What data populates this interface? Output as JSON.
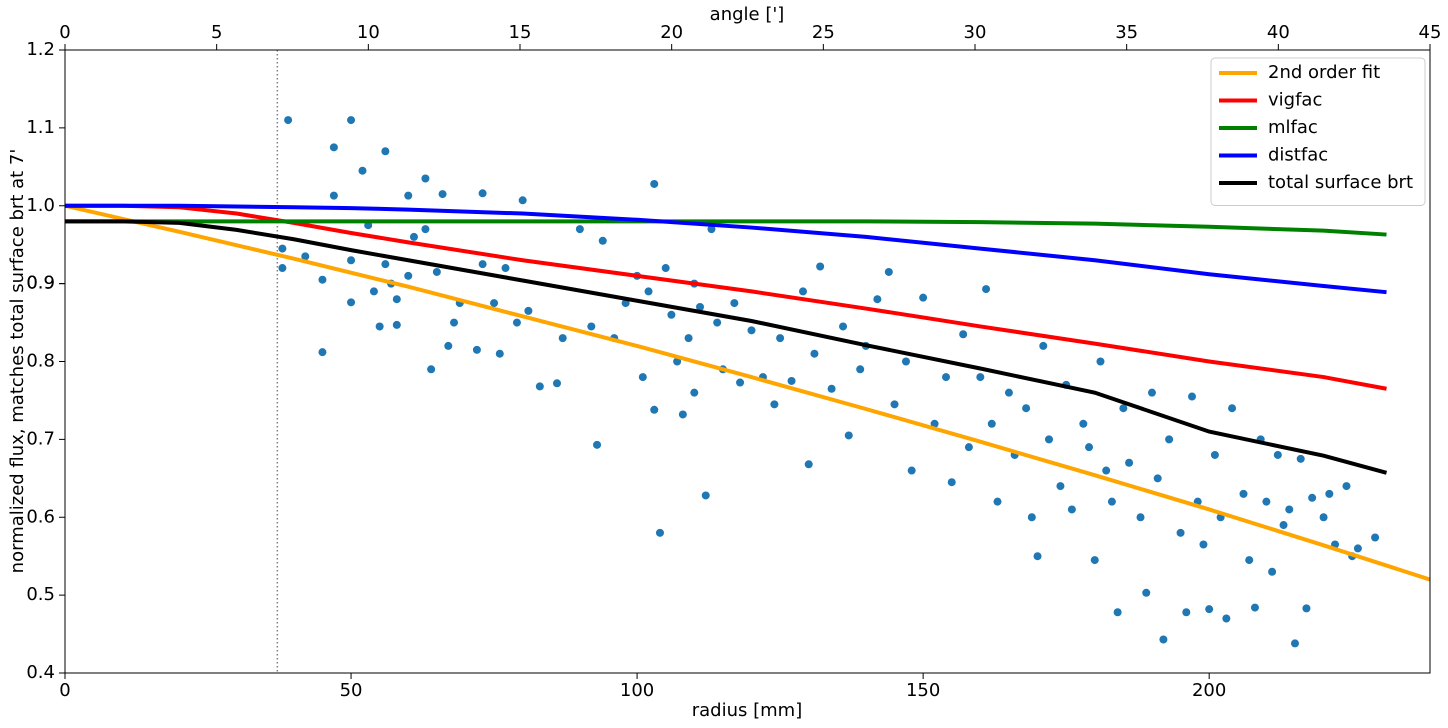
{
  "chart_data": {
    "type": "scatter",
    "xlabel": "radius [mm]",
    "ylabel": "normalized flux, matches total surface brt at 7'",
    "x2label": "angle [']",
    "xlim": [
      0,
      238.6
    ],
    "xticks": [
      0,
      50,
      100,
      150,
      200
    ],
    "x2lim": [
      0,
      45
    ],
    "x2ticks": [
      0,
      5,
      10,
      15,
      20,
      25,
      30,
      35,
      40,
      45
    ],
    "ylim": [
      0.4,
      1.2
    ],
    "yticks": [
      0.4,
      0.5,
      0.6,
      0.7,
      0.8,
      0.9,
      {
        "value": 1,
        "label": "1.0"
      },
      0.9,
      1.1,
      1.2
    ],
    "reference_line": {
      "axis": "x2",
      "value": 7,
      "color": "#808080"
    },
    "legend": "upper right",
    "scatter": {
      "color": "#1f77b4",
      "x": [
        39,
        47,
        50,
        47,
        52,
        56,
        60,
        63,
        66,
        73,
        80,
        103,
        38,
        38,
        42,
        45,
        45,
        50,
        50,
        53,
        54,
        55,
        56,
        57,
        58,
        58,
        60,
        61,
        63,
        64,
        65,
        67,
        68,
        69,
        72,
        73,
        75,
        76,
        77,
        79,
        81,
        83,
        86,
        87,
        90,
        92,
        93,
        94,
        96,
        98,
        100,
        101,
        102,
        103,
        104,
        105,
        106,
        107,
        108,
        109,
        110,
        110,
        111,
        112,
        113,
        114,
        115,
        117,
        118,
        120,
        122,
        124,
        125,
        127,
        129,
        130,
        131,
        132,
        134,
        136,
        137,
        139,
        140,
        142,
        144,
        145,
        147,
        148,
        150,
        152,
        154,
        155,
        157,
        158,
        160,
        161,
        162,
        163,
        165,
        166,
        168,
        169,
        170,
        171,
        172,
        174,
        175,
        176,
        178,
        179,
        180,
        181,
        182,
        183,
        184,
        185,
        186,
        188,
        189,
        190,
        191,
        192,
        193,
        195,
        196,
        197,
        198,
        199,
        200,
        201,
        202,
        203,
        204,
        206,
        207,
        208,
        209,
        210,
        211,
        212,
        213,
        214,
        215,
        216,
        217,
        218,
        220,
        221,
        222,
        224,
        225,
        226,
        229
      ],
      "values": [
        1.11,
        1.075,
        1.11,
        1.013,
        1.045,
        1.07,
        1.013,
        1.035,
        1.015,
        1.016,
        1.007,
        1.028,
        0.945,
        0.92,
        0.935,
        0.905,
        0.812,
        0.93,
        0.876,
        0.975,
        0.89,
        0.845,
        0.925,
        0.9,
        0.88,
        0.847,
        0.91,
        0.96,
        0.97,
        0.79,
        0.915,
        0.82,
        0.85,
        0.875,
        0.815,
        0.925,
        0.875,
        0.81,
        0.92,
        0.85,
        0.865,
        0.768,
        0.772,
        0.83,
        0.97,
        0.845,
        0.693,
        0.955,
        0.83,
        0.875,
        0.91,
        0.78,
        0.89,
        0.738,
        0.58,
        0.92,
        0.86,
        0.8,
        0.732,
        0.83,
        0.9,
        0.76,
        0.87,
        0.628,
        0.97,
        0.85,
        0.79,
        0.875,
        0.773,
        0.84,
        0.78,
        0.745,
        0.83,
        0.775,
        0.89,
        0.668,
        0.81,
        0.922,
        0.765,
        0.845,
        0.705,
        0.79,
        0.82,
        0.88,
        0.915,
        0.745,
        0.8,
        0.66,
        0.882,
        0.72,
        0.78,
        0.645,
        0.835,
        0.69,
        0.78,
        0.893,
        0.72,
        0.62,
        0.76,
        0.68,
        0.74,
        0.6,
        0.55,
        0.82,
        0.7,
        0.64,
        0.77,
        0.61,
        0.72,
        0.69,
        0.545,
        0.8,
        0.66,
        0.62,
        0.478,
        0.74,
        0.67,
        0.6,
        0.503,
        0.76,
        0.65,
        0.443,
        0.7,
        0.58,
        0.478,
        0.755,
        0.62,
        0.565,
        0.482,
        0.68,
        0.6,
        0.47,
        0.74,
        0.63,
        0.545,
        0.484,
        0.7,
        0.62,
        0.53,
        0.68,
        0.59,
        0.61,
        0.438,
        0.675,
        0.483,
        0.625,
        0.6,
        0.63,
        0.565,
        0.64,
        0.55,
        0.56,
        0.574
      ]
    },
    "series": [
      {
        "name": "2nd order fit",
        "color": "#ffa500",
        "x": [
          0,
          20,
          40,
          60,
          80,
          100,
          120,
          140,
          160,
          180,
          200,
          220,
          238.6
        ],
        "values": [
          1,
          0.9665,
          0.932,
          0.896,
          0.858,
          0.82,
          0.78,
          0.739,
          0.697,
          0.654,
          0.61,
          0.564,
          0.52
        ]
      },
      {
        "name": "vigfac",
        "color": "#ff0000",
        "x": [
          0,
          10,
          20,
          30,
          40,
          50,
          60,
          80,
          100,
          120,
          140,
          160,
          180,
          200,
          220,
          231
        ],
        "values": [
          1,
          1,
          0.998,
          0.99,
          0.978,
          0.965,
          0.953,
          0.93,
          0.91,
          0.89,
          0.868,
          0.845,
          0.823,
          0.8,
          0.78,
          0.765
        ]
      },
      {
        "name": "mlfac",
        "color": "#008000",
        "x": [
          0,
          10,
          20,
          30,
          40,
          50,
          60,
          80,
          100,
          120,
          140,
          160,
          180,
          200,
          220,
          231
        ],
        "values": [
          0.98,
          0.98,
          0.98,
          0.98,
          0.98,
          0.98,
          0.98,
          0.98,
          0.98,
          0.98,
          0.98,
          0.979,
          0.977,
          0.973,
          0.968,
          0.963
        ]
      },
      {
        "name": "distfac",
        "color": "#0000ff",
        "x": [
          0,
          10,
          20,
          30,
          40,
          50,
          60,
          80,
          100,
          120,
          140,
          160,
          180,
          200,
          220,
          231
        ],
        "values": [
          1,
          1,
          1,
          0.999,
          0.998,
          0.997,
          0.995,
          0.99,
          0.982,
          0.972,
          0.96,
          0.945,
          0.93,
          0.912,
          0.897,
          0.889
        ]
      },
      {
        "name": "total surface brt",
        "color": "#000000",
        "x": [
          0,
          10,
          20,
          30,
          40,
          50,
          60,
          80,
          100,
          120,
          140,
          160,
          180,
          200,
          220,
          231
        ],
        "values": [
          0.98,
          0.98,
          0.978,
          0.969,
          0.957,
          0.943,
          0.93,
          0.904,
          0.878,
          0.852,
          0.821,
          0.791,
          0.76,
          0.71,
          0.679,
          0.657
        ]
      }
    ]
  }
}
